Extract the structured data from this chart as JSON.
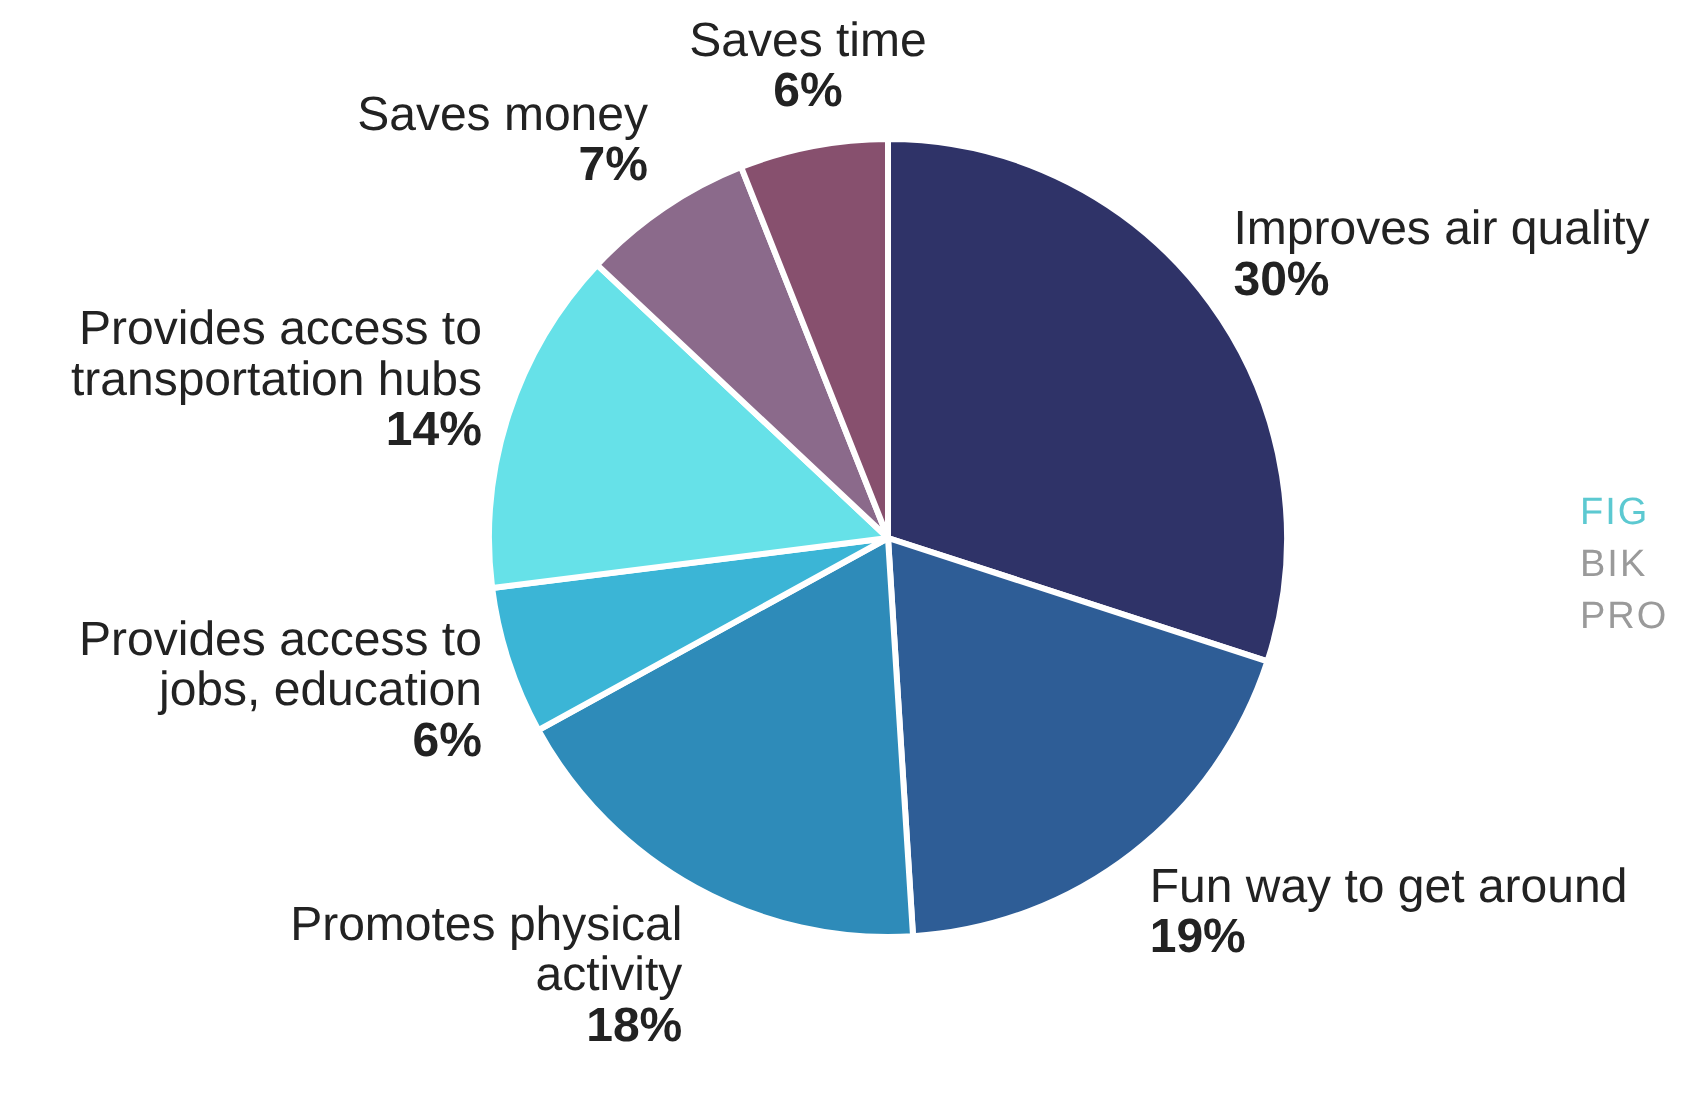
{
  "chart_data": {
    "type": "pie",
    "categories": [
      "Improves air quality",
      "Fun way to get around",
      "Promotes physical activity",
      "Provides access to jobs, education",
      "Provides access to transportation hubs",
      "Saves money",
      "Saves time"
    ],
    "values": [
      30,
      19,
      18,
      6,
      14,
      7,
      6
    ],
    "value_labels": [
      "30%",
      "19%",
      "18%",
      "6%",
      "14%",
      "7%",
      "6%"
    ],
    "colors": [
      "#2f3368",
      "#2e5d96",
      "#2e8bb9",
      "#3bb5d6",
      "#66e1e8",
      "#8b6a8b",
      "#87506e"
    ],
    "legend": false,
    "annotations": [
      "FIG",
      "BIK",
      "PRO"
    ]
  }
}
